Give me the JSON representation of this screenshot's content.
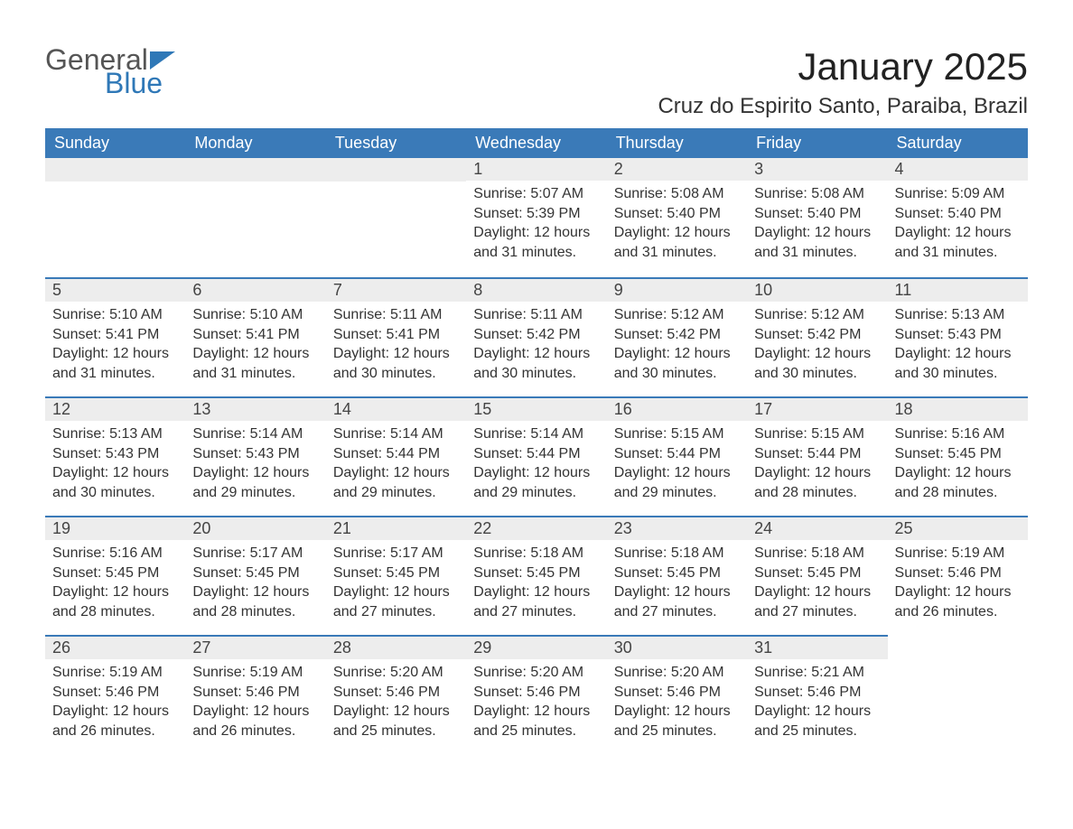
{
  "brand": {
    "word1": "General",
    "word2": "Blue",
    "triangle_color": "#2f78b7",
    "text_gray": "#555555"
  },
  "title": "January 2025",
  "location": "Cruz do Espirito Santo, Paraiba, Brazil",
  "colors": {
    "header_bg": "#3a7ab8",
    "header_text": "#ffffff",
    "daynum_bg": "#ededed",
    "rule": "#3a7ab8",
    "body_text": "#333333",
    "page_bg": "#ffffff"
  },
  "typography": {
    "title_fontsize": 42,
    "location_fontsize": 24,
    "header_fontsize": 18,
    "daynum_fontsize": 18,
    "body_fontsize": 16
  },
  "weekdays": [
    "Sunday",
    "Monday",
    "Tuesday",
    "Wednesday",
    "Thursday",
    "Friday",
    "Saturday"
  ],
  "weeks": [
    [
      null,
      null,
      null,
      {
        "n": "1",
        "sunrise": "5:07 AM",
        "sunset": "5:39 PM",
        "daylight": "12 hours and 31 minutes."
      },
      {
        "n": "2",
        "sunrise": "5:08 AM",
        "sunset": "5:40 PM",
        "daylight": "12 hours and 31 minutes."
      },
      {
        "n": "3",
        "sunrise": "5:08 AM",
        "sunset": "5:40 PM",
        "daylight": "12 hours and 31 minutes."
      },
      {
        "n": "4",
        "sunrise": "5:09 AM",
        "sunset": "5:40 PM",
        "daylight": "12 hours and 31 minutes."
      }
    ],
    [
      {
        "n": "5",
        "sunrise": "5:10 AM",
        "sunset": "5:41 PM",
        "daylight": "12 hours and 31 minutes."
      },
      {
        "n": "6",
        "sunrise": "5:10 AM",
        "sunset": "5:41 PM",
        "daylight": "12 hours and 31 minutes."
      },
      {
        "n": "7",
        "sunrise": "5:11 AM",
        "sunset": "5:41 PM",
        "daylight": "12 hours and 30 minutes."
      },
      {
        "n": "8",
        "sunrise": "5:11 AM",
        "sunset": "5:42 PM",
        "daylight": "12 hours and 30 minutes."
      },
      {
        "n": "9",
        "sunrise": "5:12 AM",
        "sunset": "5:42 PM",
        "daylight": "12 hours and 30 minutes."
      },
      {
        "n": "10",
        "sunrise": "5:12 AM",
        "sunset": "5:42 PM",
        "daylight": "12 hours and 30 minutes."
      },
      {
        "n": "11",
        "sunrise": "5:13 AM",
        "sunset": "5:43 PM",
        "daylight": "12 hours and 30 minutes."
      }
    ],
    [
      {
        "n": "12",
        "sunrise": "5:13 AM",
        "sunset": "5:43 PM",
        "daylight": "12 hours and 30 minutes."
      },
      {
        "n": "13",
        "sunrise": "5:14 AM",
        "sunset": "5:43 PM",
        "daylight": "12 hours and 29 minutes."
      },
      {
        "n": "14",
        "sunrise": "5:14 AM",
        "sunset": "5:44 PM",
        "daylight": "12 hours and 29 minutes."
      },
      {
        "n": "15",
        "sunrise": "5:14 AM",
        "sunset": "5:44 PM",
        "daylight": "12 hours and 29 minutes."
      },
      {
        "n": "16",
        "sunrise": "5:15 AM",
        "sunset": "5:44 PM",
        "daylight": "12 hours and 29 minutes."
      },
      {
        "n": "17",
        "sunrise": "5:15 AM",
        "sunset": "5:44 PM",
        "daylight": "12 hours and 28 minutes."
      },
      {
        "n": "18",
        "sunrise": "5:16 AM",
        "sunset": "5:45 PM",
        "daylight": "12 hours and 28 minutes."
      }
    ],
    [
      {
        "n": "19",
        "sunrise": "5:16 AM",
        "sunset": "5:45 PM",
        "daylight": "12 hours and 28 minutes."
      },
      {
        "n": "20",
        "sunrise": "5:17 AM",
        "sunset": "5:45 PM",
        "daylight": "12 hours and 28 minutes."
      },
      {
        "n": "21",
        "sunrise": "5:17 AM",
        "sunset": "5:45 PM",
        "daylight": "12 hours and 27 minutes."
      },
      {
        "n": "22",
        "sunrise": "5:18 AM",
        "sunset": "5:45 PM",
        "daylight": "12 hours and 27 minutes."
      },
      {
        "n": "23",
        "sunrise": "5:18 AM",
        "sunset": "5:45 PM",
        "daylight": "12 hours and 27 minutes."
      },
      {
        "n": "24",
        "sunrise": "5:18 AM",
        "sunset": "5:45 PM",
        "daylight": "12 hours and 27 minutes."
      },
      {
        "n": "25",
        "sunrise": "5:19 AM",
        "sunset": "5:46 PM",
        "daylight": "12 hours and 26 minutes."
      }
    ],
    [
      {
        "n": "26",
        "sunrise": "5:19 AM",
        "sunset": "5:46 PM",
        "daylight": "12 hours and 26 minutes."
      },
      {
        "n": "27",
        "sunrise": "5:19 AM",
        "sunset": "5:46 PM",
        "daylight": "12 hours and 26 minutes."
      },
      {
        "n": "28",
        "sunrise": "5:20 AM",
        "sunset": "5:46 PM",
        "daylight": "12 hours and 25 minutes."
      },
      {
        "n": "29",
        "sunrise": "5:20 AM",
        "sunset": "5:46 PM",
        "daylight": "12 hours and 25 minutes."
      },
      {
        "n": "30",
        "sunrise": "5:20 AM",
        "sunset": "5:46 PM",
        "daylight": "12 hours and 25 minutes."
      },
      {
        "n": "31",
        "sunrise": "5:21 AM",
        "sunset": "5:46 PM",
        "daylight": "12 hours and 25 minutes."
      },
      null
    ]
  ],
  "labels": {
    "sunrise": "Sunrise: ",
    "sunset": "Sunset: ",
    "daylight": "Daylight: "
  }
}
